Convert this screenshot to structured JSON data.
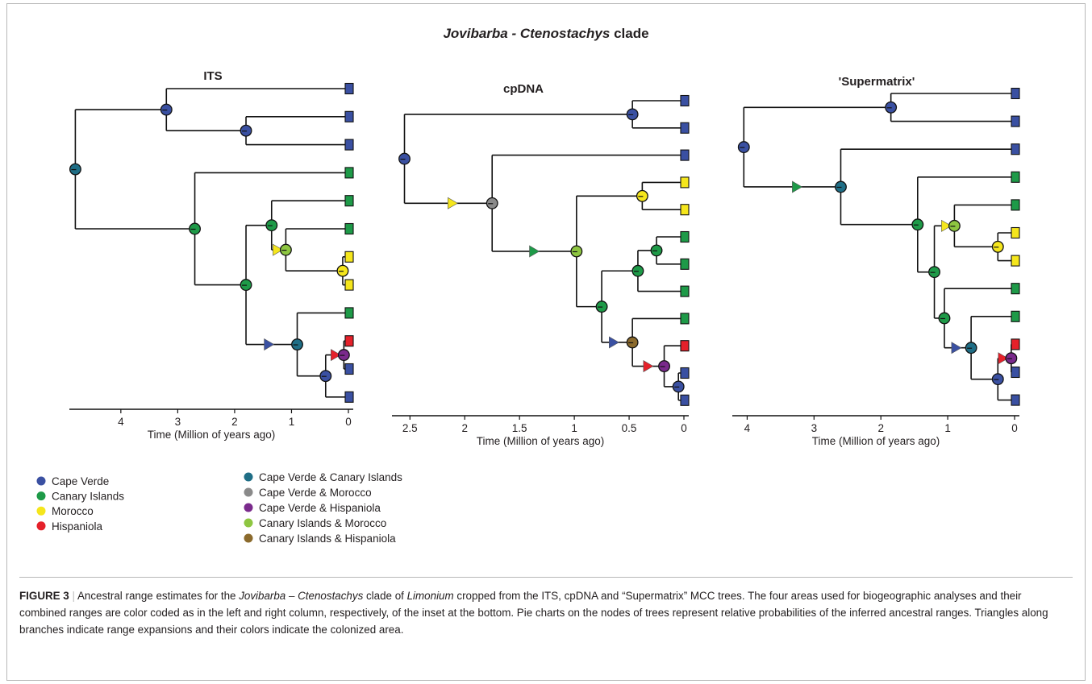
{
  "figure_title": {
    "prefix": "Jovibarba - Ctenostachys",
    "suffix": " clade"
  },
  "colors": {
    "CV": "#3a50a2",
    "CI": "#1e9a48",
    "MO": "#f5e61c",
    "HI": "#e5212a",
    "CVCI": "#1f6e86",
    "CVMO": "#8a8a8a",
    "CVHI": "#7a2a8c",
    "CIMO": "#8ec641",
    "CIHI": "#8b6a2c"
  },
  "legend": {
    "single": [
      {
        "key": "CV",
        "label": "Cape Verde"
      },
      {
        "key": "CI",
        "label": "Canary Islands"
      },
      {
        "key": "MO",
        "label": "Morocco"
      },
      {
        "key": "HI",
        "label": "Hispaniola"
      }
    ],
    "combined": [
      {
        "key": "CVCI",
        "label": "Cape Verde & Canary Islands"
      },
      {
        "key": "CVMO",
        "label": "Cape Verde & Morocco"
      },
      {
        "key": "CVHI",
        "label": "Cape Verde & Hispaniola"
      },
      {
        "key": "CIMO",
        "label": "Canary Islands & Morocco"
      },
      {
        "key": "CIHI",
        "label": "Canary Islands & Hispaniola"
      }
    ]
  },
  "chart_data": [
    {
      "type": "tree",
      "title": "ITS",
      "xlabel": "Time (Million of years ago)",
      "ticks": [
        "4",
        "3",
        "2",
        "1",
        "0"
      ],
      "tick_values": [
        4,
        3,
        2,
        1,
        0
      ],
      "tips": [
        "CV",
        "CV",
        "CV",
        "CI",
        "CI",
        "CI",
        "MO",
        "MO",
        "CI",
        "HI",
        "CV",
        "CV"
      ],
      "nodes": {
        "root": {
          "age": 4.8,
          "c": "CVCI",
          "ch": [
            "n1",
            "n3"
          ]
        },
        "n1": {
          "age": 3.2,
          "c": "CV",
          "ch": [
            0,
            "n2"
          ]
        },
        "n2": {
          "age": 1.8,
          "c": "CV",
          "ch": [
            1,
            2
          ]
        },
        "n3": {
          "age": 2.7,
          "c": "CI",
          "ch": [
            3,
            "n4"
          ]
        },
        "n4": {
          "age": 1.8,
          "c": "CI",
          "ch": [
            "n5",
            "n7"
          ]
        },
        "n5": {
          "age": 1.35,
          "c": "CI",
          "ch": [
            4,
            "n6"
          ]
        },
        "n6": {
          "age": 1.1,
          "c": "CIMO",
          "ch": [
            5,
            "n6b"
          ]
        },
        "n6b": {
          "age": 0.1,
          "c": "MO",
          "ch": [
            6,
            7
          ]
        },
        "n7": {
          "age": 0.9,
          "c": "CVCI",
          "ch": [
            8,
            "n8"
          ]
        },
        "n8": {
          "age": 0.4,
          "c": "CV",
          "ch": [
            "n9",
            11
          ]
        },
        "n9": {
          "age": 0.08,
          "c": "CVHI",
          "ch": [
            9,
            10
          ]
        }
      },
      "expansions": [
        {
          "node": "n6",
          "c": "MO"
        },
        {
          "node": "n7",
          "c": "CV",
          "pos": 0.45
        },
        {
          "node": "n9",
          "c": "HI"
        }
      ]
    },
    {
      "type": "tree",
      "title": "cpDNA",
      "xlabel": "Time (Million of years ago)",
      "ticks": [
        "2.5",
        "2",
        "1.5",
        "1",
        "0.5",
        "0"
      ],
      "tick_values": [
        2.5,
        2,
        1.5,
        1,
        0.5,
        0
      ],
      "tips": [
        "CV",
        "CV",
        "CV",
        "MO",
        "MO",
        "CI",
        "CI",
        "CI",
        "CI",
        "HI",
        "CV",
        "CV"
      ],
      "nodes": {
        "root": {
          "age": 2.55,
          "c": "CV",
          "ch": [
            "n1",
            "n2"
          ]
        },
        "n1": {
          "age": 0.47,
          "c": "CV",
          "ch": [
            0,
            1
          ]
        },
        "n2": {
          "age": 1.75,
          "c": "CVMO",
          "ch": [
            2,
            "n3"
          ]
        },
        "n3": {
          "age": 0.98,
          "c": "CIMO",
          "ch": [
            "n4",
            "n5"
          ]
        },
        "n4": {
          "age": 0.38,
          "c": "MO",
          "ch": [
            3,
            4
          ]
        },
        "n5": {
          "age": 0.75,
          "c": "CI",
          "ch": [
            "n6",
            "n8"
          ]
        },
        "n6": {
          "age": 0.42,
          "c": "CI",
          "ch": [
            "n7",
            7
          ]
        },
        "n7": {
          "age": 0.25,
          "c": "CI",
          "ch": [
            5,
            6
          ]
        },
        "n8": {
          "age": 0.47,
          "c": "CIHI",
          "ch": [
            8,
            "n9"
          ]
        },
        "n9": {
          "age": 0.18,
          "c": "CVHI",
          "ch": [
            9,
            "n10"
          ]
        },
        "n10": {
          "age": 0.05,
          "c": "CV",
          "ch": [
            10,
            11
          ]
        }
      },
      "expansions": [
        {
          "node": "n2",
          "c": "MO",
          "pos": 0.55
        },
        {
          "node": "n3",
          "c": "CI",
          "pos": 0.5
        },
        {
          "node": "n8",
          "c": "CV",
          "pos": 0.4
        },
        {
          "node": "n9",
          "c": "HI",
          "pos": 0.5
        }
      ]
    },
    {
      "type": "tree",
      "title": "'Supermatrix'",
      "xlabel": "Time (Million of years ago)",
      "ticks": [
        "4",
        "3",
        "2",
        "1",
        "0"
      ],
      "tick_values": [
        4,
        3,
        2,
        1,
        0
      ],
      "tips": [
        "CV",
        "CV",
        "CV",
        "CI",
        "CI",
        "MO",
        "MO",
        "CI",
        "CI",
        "HI",
        "CV",
        "CV"
      ],
      "nodes": {
        "root": {
          "age": 4.05,
          "c": "CV",
          "ch": [
            "n1",
            "n2"
          ]
        },
        "n1": {
          "age": 1.85,
          "c": "CV",
          "ch": [
            0,
            1
          ]
        },
        "n2": {
          "age": 2.6,
          "c": "CVCI",
          "ch": [
            2,
            "n3"
          ]
        },
        "n3": {
          "age": 1.45,
          "c": "CI",
          "ch": [
            3,
            "n4"
          ]
        },
        "n4": {
          "age": 1.2,
          "c": "CI",
          "ch": [
            "n5",
            "n7"
          ]
        },
        "n5": {
          "age": 0.9,
          "c": "CIMO",
          "ch": [
            4,
            "n6"
          ]
        },
        "n6": {
          "age": 0.25,
          "c": "MO",
          "ch": [
            5,
            6
          ]
        },
        "n7": {
          "age": 1.05,
          "c": "CI",
          "ch": [
            7,
            "n8"
          ]
        },
        "n8": {
          "age": 0.65,
          "c": "CVCI",
          "ch": [
            8,
            "n9"
          ]
        },
        "n9": {
          "age": 0.25,
          "c": "CV",
          "ch": [
            "n10",
            11
          ]
        },
        "n10": {
          "age": 0.05,
          "c": "CVHI",
          "ch": [
            9,
            10
          ]
        }
      },
      "expansions": [
        {
          "node": "n2",
          "c": "CI",
          "pos": 0.55
        },
        {
          "node": "n5",
          "c": "MO"
        },
        {
          "node": "n8",
          "c": "CV",
          "pos": 0.45
        },
        {
          "node": "n10",
          "c": "HI"
        }
      ]
    }
  ],
  "caption": {
    "label": "FIGURE 3",
    "sep": "|",
    "t1": "Ancestral range estimates for the ",
    "i1": "Jovibarba – Ctenostachys",
    "t2": " clade of ",
    "i2": "Limonium",
    "t3": " cropped from the ITS, cpDNA and “Supermatrix” MCC trees. The four areas used for biogeographic analyses and their combined ranges are color coded as in the left and right column, respectively, of the inset at the bottom. Pie charts on the nodes of trees represent relative probabilities of the inferred ancestral ranges. Triangles along branches indicate range expansions and their colors indicate the colonized area."
  }
}
